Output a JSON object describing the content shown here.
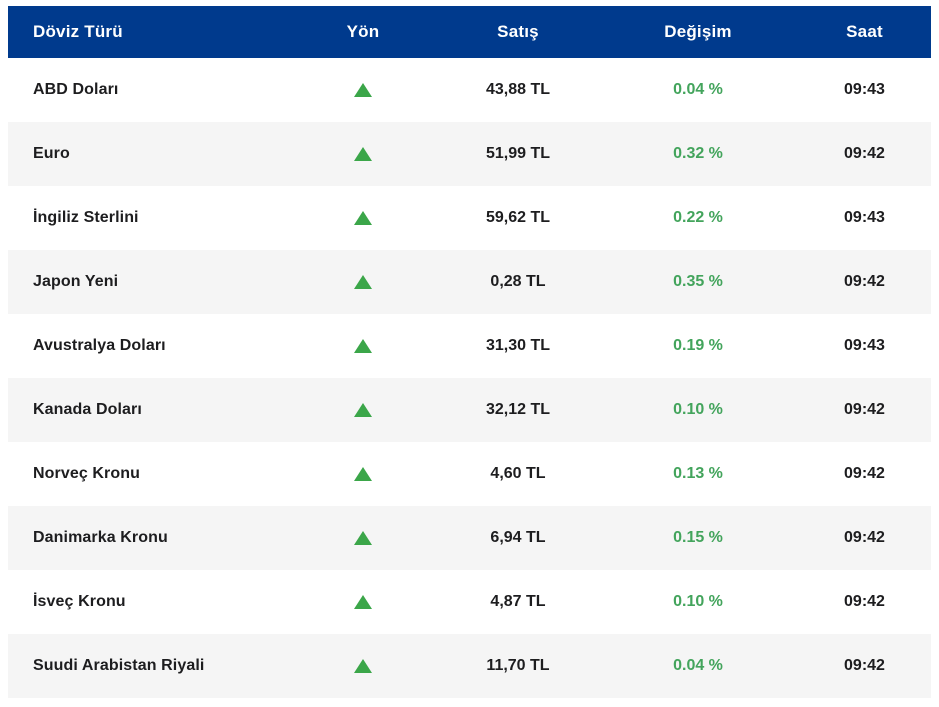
{
  "colors": {
    "header_bg": "#003a8d",
    "header_text": "#ffffff",
    "row_alt_bg": "#f5f5f5",
    "row_text": "#1d1d1f",
    "change_up_text": "#43a45c",
    "up_triangle": "#3ba649"
  },
  "table": {
    "columns": [
      {
        "key": "currency",
        "label": "Döviz Türü"
      },
      {
        "key": "direction",
        "label": "Yön"
      },
      {
        "key": "price",
        "label": "Satış"
      },
      {
        "key": "change",
        "label": "Değişim"
      },
      {
        "key": "time",
        "label": "Saat"
      }
    ],
    "rows": [
      {
        "currency": "ABD Doları",
        "direction": "up",
        "price": "43,88 TL",
        "change": "0.04 %",
        "time": "09:43"
      },
      {
        "currency": "Euro",
        "direction": "up",
        "price": "51,99 TL",
        "change": "0.32 %",
        "time": "09:42"
      },
      {
        "currency": "İngiliz Sterlini",
        "direction": "up",
        "price": "59,62 TL",
        "change": "0.22 %",
        "time": "09:43"
      },
      {
        "currency": "Japon Yeni",
        "direction": "up",
        "price": "0,28 TL",
        "change": "0.35 %",
        "time": "09:42"
      },
      {
        "currency": "Avustralya Doları",
        "direction": "up",
        "price": "31,30 TL",
        "change": "0.19 %",
        "time": "09:43"
      },
      {
        "currency": "Kanada Doları",
        "direction": "up",
        "price": "32,12 TL",
        "change": "0.10 %",
        "time": "09:42"
      },
      {
        "currency": "Norveç Kronu",
        "direction": "up",
        "price": "4,60 TL",
        "change": "0.13 %",
        "time": "09:42"
      },
      {
        "currency": "Danimarka Kronu",
        "direction": "up",
        "price": "6,94 TL",
        "change": "0.15 %",
        "time": "09:42"
      },
      {
        "currency": "İsveç Kronu",
        "direction": "up",
        "price": "4,87 TL",
        "change": "0.10 %",
        "time": "09:42"
      },
      {
        "currency": "Suudi Arabistan Riyali",
        "direction": "up",
        "price": "11,70 TL",
        "change": "0.04 %",
        "time": "09:42"
      }
    ]
  }
}
